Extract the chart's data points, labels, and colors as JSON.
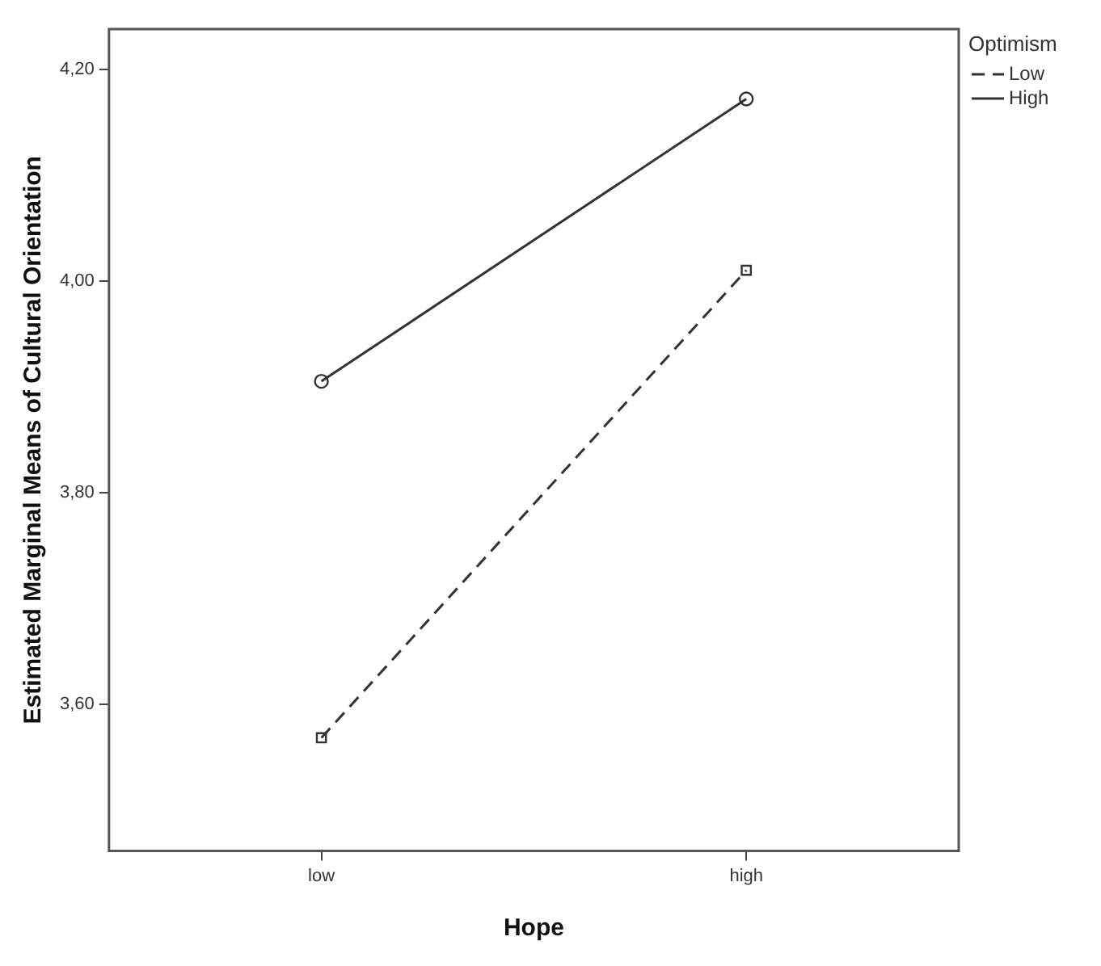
{
  "chart_data": {
    "type": "line",
    "xlabel": "Hope",
    "ylabel": "Estimated Marginal Means of Cultural Orientation",
    "legend_title": "Optimism",
    "categories": [
      "low",
      "high"
    ],
    "series": [
      {
        "name": "Low",
        "color": "#333333",
        "values": [
          3.568,
          4.01
        ],
        "line_style": "dashed",
        "marker": "square"
      },
      {
        "name": "High",
        "color": "#333333",
        "values": [
          3.905,
          4.172
        ],
        "line_style": "solid",
        "marker": "circle"
      }
    ],
    "ylim": [
      3.461,
      4.238
    ],
    "yticks": [
      {
        "value": 3.6,
        "label": "3,60"
      },
      {
        "value": 3.8,
        "label": "3,80"
      },
      {
        "value": 4.0,
        "label": "4,00"
      },
      {
        "value": 4.2,
        "label": "4,20"
      }
    ],
    "grid": false,
    "legend": "top right"
  }
}
